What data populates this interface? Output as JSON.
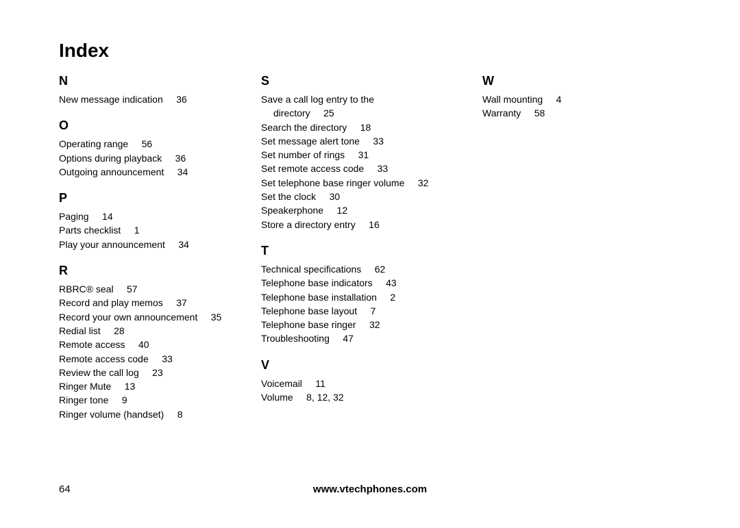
{
  "title": "Index",
  "pageNumber": "64",
  "footerUrl": "www.vtechphones.com",
  "columns": [
    [
      {
        "letter": "N",
        "entries": [
          {
            "term": "New message indication",
            "pages": "36"
          }
        ]
      },
      {
        "letter": "O",
        "entries": [
          {
            "term": "Operating range",
            "pages": "56"
          },
          {
            "term": "Options during playback",
            "pages": "36"
          },
          {
            "term": "Outgoing announcement",
            "pages": "34"
          }
        ]
      },
      {
        "letter": "P",
        "entries": [
          {
            "term": "Paging",
            "pages": "14"
          },
          {
            "term": "Parts checklist",
            "pages": "1"
          },
          {
            "term": "Play your announcement",
            "pages": "34"
          }
        ]
      },
      {
        "letter": "R",
        "entries": [
          {
            "term": "RBRC® seal",
            "pages": "57"
          },
          {
            "term": "Record and play memos",
            "pages": "37"
          },
          {
            "term": "Record your own announcement",
            "pages": "35"
          },
          {
            "term": "Redial list",
            "pages": "28"
          },
          {
            "term": "Remote access",
            "pages": "40"
          },
          {
            "term": "Remote access code",
            "pages": "33"
          },
          {
            "term": "Review the call log",
            "pages": "23"
          },
          {
            "term": "Ringer Mute",
            "pages": "13"
          },
          {
            "term": "Ringer tone",
            "pages": "9"
          },
          {
            "term": "Ringer volume (handset)",
            "pages": "8"
          }
        ]
      }
    ],
    [
      {
        "letter": "S",
        "entries": [
          {
            "term": "Save a call log entry to the",
            "continuation": "directory",
            "pages": "25"
          },
          {
            "term": "Search the directory",
            "pages": "18"
          },
          {
            "term": "Set message alert tone",
            "pages": "33"
          },
          {
            "term": "Set number of rings",
            "pages": "31"
          },
          {
            "term": "Set remote access code",
            "pages": "33"
          },
          {
            "term": "Set telephone base ringer volume",
            "pages": "32"
          },
          {
            "term": "Set the clock",
            "pages": "30"
          },
          {
            "term": "Speakerphone",
            "pages": "12"
          },
          {
            "term": "Store a directory entry",
            "pages": "16"
          }
        ]
      },
      {
        "letter": "T",
        "entries": [
          {
            "term": "Technical specifications",
            "pages": "62"
          },
          {
            "term": "Telephone base indicators",
            "pages": "43"
          },
          {
            "term": "Telephone base installation",
            "pages": "2"
          },
          {
            "term": "Telephone base layout",
            "pages": "7"
          },
          {
            "term": "Telephone base ringer",
            "pages": "32"
          },
          {
            "term": "Troubleshooting",
            "pages": "47"
          }
        ]
      },
      {
        "letter": "V",
        "entries": [
          {
            "term": "Voicemail",
            "pages": "11"
          },
          {
            "term": "Volume",
            "pages": "8, 12, 32"
          }
        ]
      }
    ],
    [
      {
        "letter": "W",
        "entries": [
          {
            "term": "Wall mounting",
            "pages": "4"
          },
          {
            "term": "Warranty",
            "pages": "58"
          }
        ]
      }
    ]
  ]
}
